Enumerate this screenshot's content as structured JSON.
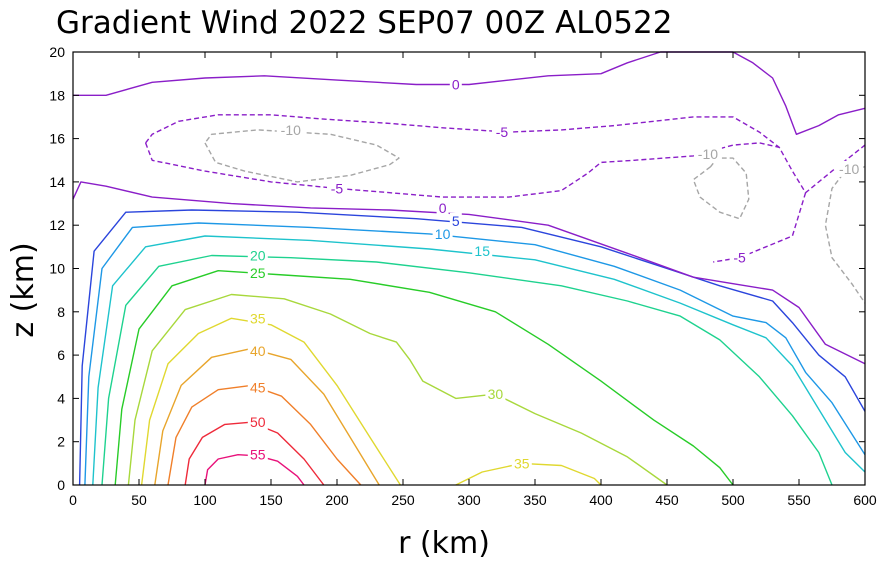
{
  "chart_data": {
    "type": "contour",
    "title": "Gradient Wind 2022 SEP07 00Z  AL0522",
    "xlabel": "r (km)",
    "ylabel": "z (km)",
    "xlim": [
      0,
      600
    ],
    "ylim": [
      0,
      20
    ],
    "xticks": [
      "0",
      "50",
      "100",
      "150",
      "200",
      "250",
      "300",
      "350",
      "400",
      "450",
      "500",
      "550",
      "600"
    ],
    "yticks": [
      "0",
      "2",
      "4",
      "6",
      "8",
      "10",
      "12",
      "14",
      "16",
      "18",
      "20"
    ],
    "contours": [
      {
        "level": "55",
        "color": "#e8117a",
        "dashed": false,
        "points": [
          [
            100,
            0
          ],
          [
            102,
            0.7
          ],
          [
            110,
            1.2
          ],
          [
            125,
            1.4
          ],
          [
            140,
            1.35
          ],
          [
            155,
            1.1
          ],
          [
            170,
            0.4
          ],
          [
            175,
            0
          ]
        ],
        "label": {
          "text": "55",
          "x": 140,
          "y": 1.4
        }
      },
      {
        "level": "50",
        "color": "#ee2a3a",
        "dashed": false,
        "points": [
          [
            85,
            0
          ],
          [
            88,
            1.2
          ],
          [
            98,
            2.2
          ],
          [
            115,
            2.8
          ],
          [
            135,
            2.9
          ],
          [
            155,
            2.4
          ],
          [
            175,
            1.2
          ],
          [
            190,
            0
          ]
        ],
        "label": {
          "text": "50",
          "x": 140,
          "y": 2.9
        }
      },
      {
        "level": "45",
        "color": "#f07f2a",
        "dashed": false,
        "points": [
          [
            72,
            0
          ],
          [
            78,
            2.2
          ],
          [
            90,
            3.6
          ],
          [
            110,
            4.4
          ],
          [
            135,
            4.6
          ],
          [
            158,
            4.1
          ],
          [
            180,
            2.8
          ],
          [
            200,
            1.2
          ],
          [
            218,
            0
          ]
        ],
        "label": {
          "text": "45",
          "x": 140,
          "y": 4.5
        }
      },
      {
        "level": "40",
        "color": "#e8a52c",
        "dashed": false,
        "points": [
          [
            62,
            0
          ],
          [
            68,
            2.5
          ],
          [
            82,
            4.6
          ],
          [
            105,
            5.9
          ],
          [
            135,
            6.3
          ],
          [
            165,
            5.8
          ],
          [
            190,
            4.2
          ],
          [
            210,
            2.2
          ],
          [
            232,
            0
          ]
        ],
        "label": {
          "text": "40",
          "x": 140,
          "y": 6.2
        }
      },
      {
        "level": "35",
        "color": "#e0d830",
        "dashed": false,
        "points": [
          [
            52,
            0
          ],
          [
            58,
            3
          ],
          [
            72,
            5.6
          ],
          [
            95,
            7
          ],
          [
            120,
            7.7
          ],
          [
            150,
            7.4
          ],
          [
            175,
            6.6
          ],
          [
            200,
            4.6
          ],
          [
            225,
            2.2
          ],
          [
            248,
            0
          ]
        ],
        "label": {
          "text": "35",
          "x": 140,
          "y": 7.7
        }
      },
      {
        "level": "35",
        "color": "#e0d830",
        "dashed": false,
        "points": [
          [
            290,
            0
          ],
          [
            310,
            0.6
          ],
          [
            340,
            1
          ],
          [
            370,
            0.9
          ],
          [
            395,
            0.3
          ],
          [
            400,
            0
          ]
        ],
        "label": {
          "text": "35",
          "x": 340,
          "y": 1.0
        }
      },
      {
        "level": "30",
        "color": "#a8d83c",
        "dashed": false,
        "points": [
          [
            42,
            0
          ],
          [
            47,
            3
          ],
          [
            60,
            6.2
          ],
          [
            85,
            8.1
          ],
          [
            120,
            8.8
          ],
          [
            160,
            8.6
          ],
          [
            195,
            7.9
          ],
          [
            225,
            7
          ],
          [
            245,
            6.6
          ],
          [
            255,
            5.8
          ],
          [
            265,
            4.8
          ],
          [
            290,
            4.0
          ],
          [
            320,
            4.2
          ],
          [
            350,
            3.3
          ],
          [
            385,
            2.4
          ],
          [
            420,
            1.3
          ],
          [
            450,
            0
          ]
        ],
        "label": {
          "text": "30",
          "x": 320,
          "y": 4.2
        }
      },
      {
        "level": "25",
        "color": "#28cc28",
        "dashed": false,
        "points": [
          [
            32,
            0
          ],
          [
            37,
            3.5
          ],
          [
            50,
            7.2
          ],
          [
            75,
            9.2
          ],
          [
            110,
            9.9
          ],
          [
            160,
            9.7
          ],
          [
            210,
            9.5
          ],
          [
            270,
            8.9
          ],
          [
            320,
            8
          ],
          [
            360,
            6.5
          ],
          [
            400,
            4.8
          ],
          [
            440,
            3
          ],
          [
            470,
            1.8
          ],
          [
            490,
            0.8
          ],
          [
            500,
            0
          ]
        ],
        "label": {
          "text": "25",
          "x": 140,
          "y": 9.8
        }
      },
      {
        "level": "20",
        "color": "#1ed28f",
        "dashed": false,
        "points": [
          [
            22,
            0
          ],
          [
            27,
            4
          ],
          [
            40,
            8.3
          ],
          [
            65,
            10.1
          ],
          [
            105,
            10.6
          ],
          [
            165,
            10.5
          ],
          [
            230,
            10.3
          ],
          [
            300,
            9.8
          ],
          [
            370,
            9.2
          ],
          [
            420,
            8.5
          ],
          [
            460,
            7.8
          ],
          [
            490,
            6.7
          ],
          [
            520,
            5
          ],
          [
            545,
            3.2
          ],
          [
            565,
            1.5
          ],
          [
            575,
            0
          ]
        ],
        "label": {
          "text": "20",
          "x": 140,
          "y": 10.6
        }
      },
      {
        "level": "15",
        "color": "#1ec3cc",
        "dashed": false,
        "points": [
          [
            15,
            0
          ],
          [
            19,
            4.5
          ],
          [
            30,
            9.2
          ],
          [
            55,
            11
          ],
          [
            100,
            11.5
          ],
          [
            180,
            11.3
          ],
          [
            270,
            10.9
          ],
          [
            350,
            10.4
          ],
          [
            410,
            9.5
          ],
          [
            460,
            8.4
          ],
          [
            500,
            7.4
          ],
          [
            525,
            6.8
          ],
          [
            545,
            5.5
          ],
          [
            565,
            3.5
          ],
          [
            585,
            1.5
          ],
          [
            600,
            0.6
          ]
        ],
        "label": {
          "text": "15",
          "x": 310,
          "y": 10.8
        }
      },
      {
        "level": "10",
        "color": "#1e98e6",
        "dashed": false,
        "points": [
          [
            9,
            0
          ],
          [
            12,
            5
          ],
          [
            22,
            10
          ],
          [
            45,
            11.9
          ],
          [
            95,
            12.1
          ],
          [
            180,
            11.9
          ],
          [
            270,
            11.6
          ],
          [
            350,
            11.1
          ],
          [
            410,
            10.1
          ],
          [
            460,
            9
          ],
          [
            500,
            7.8
          ],
          [
            525,
            7.5
          ],
          [
            540,
            6.8
          ],
          [
            555,
            5.2
          ],
          [
            575,
            3.8
          ],
          [
            600,
            1.4
          ]
        ],
        "label": {
          "text": "10",
          "x": 280,
          "y": 11.6
        }
      },
      {
        "level": "5",
        "color": "#2b45dc",
        "dashed": false,
        "points": [
          [
            5,
            0
          ],
          [
            7,
            5.5
          ],
          [
            16,
            10.8
          ],
          [
            40,
            12.6
          ],
          [
            90,
            12.7
          ],
          [
            170,
            12.6
          ],
          [
            260,
            12.3
          ],
          [
            340,
            11.9
          ],
          [
            400,
            11
          ],
          [
            450,
            10
          ],
          [
            490,
            9.2
          ],
          [
            530,
            8.5
          ],
          [
            545,
            7.5
          ],
          [
            565,
            6
          ],
          [
            585,
            5
          ],
          [
            600,
            3.4
          ]
        ],
        "label": {
          "text": "5",
          "x": 290,
          "y": 12.2
        }
      },
      {
        "level": "0",
        "color": "#8a1ec8",
        "dashed": false,
        "points": [
          [
            0,
            13.2
          ],
          [
            6,
            14
          ],
          [
            25,
            13.8
          ],
          [
            60,
            13.3
          ],
          [
            120,
            13
          ],
          [
            180,
            12.8
          ],
          [
            240,
            12.7
          ],
          [
            300,
            12.5
          ],
          [
            360,
            12
          ],
          [
            420,
            10.7
          ],
          [
            470,
            9.6
          ],
          [
            500,
            9.3
          ],
          [
            530,
            9
          ],
          [
            550,
            8.2
          ],
          [
            570,
            6.5
          ],
          [
            600,
            5.6
          ]
        ],
        "label": {
          "text": "0",
          "x": 280,
          "y": 12.8
        }
      },
      {
        "level": "0",
        "color": "#8a1ec8",
        "dashed": false,
        "points": [
          [
            0,
            18
          ],
          [
            25,
            18
          ],
          [
            60,
            18.6
          ],
          [
            100,
            18.8
          ],
          [
            145,
            18.9
          ],
          [
            200,
            18.7
          ],
          [
            260,
            18.5
          ],
          [
            300,
            18.5
          ],
          [
            360,
            18.9
          ],
          [
            400,
            19
          ],
          [
            420,
            19.5
          ],
          [
            445,
            20
          ],
          [
            500,
            20
          ],
          [
            515,
            19.5
          ],
          [
            530,
            18.8
          ],
          [
            540,
            17.5
          ],
          [
            548,
            16.2
          ],
          [
            565,
            16.6
          ],
          [
            580,
            17.1
          ],
          [
            600,
            17.4
          ]
        ],
        "label": {
          "text": "0",
          "x": 290,
          "y": 18.5
        }
      },
      {
        "level": "-5",
        "color": "#8a1ec8",
        "dashed": true,
        "points": [
          [
            55,
            15.8
          ],
          [
            60,
            15
          ],
          [
            100,
            14.5
          ],
          [
            150,
            14
          ],
          [
            200,
            13.7
          ],
          [
            240,
            13.5
          ],
          [
            280,
            13.3
          ],
          [
            330,
            13.3
          ],
          [
            370,
            13.6
          ],
          [
            390,
            14.4
          ],
          [
            400,
            14.9
          ],
          [
            425,
            15
          ],
          [
            470,
            15.2
          ],
          [
            500,
            15.7
          ],
          [
            520,
            15.8
          ],
          [
            535,
            15.6
          ],
          [
            545,
            14.5
          ],
          [
            555,
            13.5
          ],
          [
            575,
            14.5
          ],
          [
            600,
            15.7
          ]
        ],
        "label": {
          "text": "-5",
          "x": 200,
          "y": 13.7
        }
      },
      {
        "level": "-5",
        "color": "#8a1ec8",
        "dashed": true,
        "points": [
          [
            55,
            15.8
          ],
          [
            60,
            16.2
          ],
          [
            80,
            16.8
          ],
          [
            110,
            17.1
          ],
          [
            150,
            17.1
          ],
          [
            190,
            16.9
          ],
          [
            240,
            16.7
          ],
          [
            280,
            16.5
          ],
          [
            330,
            16.3
          ],
          [
            370,
            16.4
          ],
          [
            410,
            16.6
          ],
          [
            440,
            16.8
          ],
          [
            470,
            17
          ],
          [
            500,
            17
          ],
          [
            520,
            16.3
          ],
          [
            535,
            15.6
          ]
        ],
        "label": {
          "text": "-5",
          "x": 325,
          "y": 16.3
        }
      },
      {
        "level": "-5",
        "color": "#8a1ec8",
        "dashed": true,
        "points": [
          [
            555,
            13.5
          ],
          [
            545,
            11.5
          ],
          [
            525,
            11
          ],
          [
            505,
            10.5
          ],
          [
            485,
            10.3
          ]
        ],
        "label": {
          "text": "-5",
          "x": 505,
          "y": 10.5
        }
      },
      {
        "level": "-10",
        "color": "#a6a6a6",
        "dashed": true,
        "points": [
          [
            100,
            15.8
          ],
          [
            108,
            14.9
          ],
          [
            130,
            14.5
          ],
          [
            170,
            14
          ],
          [
            210,
            14.3
          ],
          [
            240,
            14.8
          ],
          [
            247,
            15.1
          ],
          [
            230,
            15.7
          ],
          [
            195,
            16.2
          ],
          [
            140,
            16.4
          ],
          [
            105,
            16.2
          ],
          [
            100,
            15.8
          ]
        ],
        "label": {
          "text": "-10",
          "x": 165,
          "y": 16.4
        }
      },
      {
        "level": "-10",
        "color": "#a6a6a6",
        "dashed": true,
        "points": [
          [
            483,
            14.7
          ],
          [
            470,
            14.1
          ],
          [
            475,
            13.3
          ],
          [
            490,
            12.6
          ],
          [
            505,
            12.3
          ],
          [
            512,
            13.2
          ],
          [
            510,
            14.4
          ],
          [
            500,
            15.1
          ],
          [
            488,
            15.1
          ],
          [
            483,
            14.7
          ]
        ],
        "label": {
          "text": "-10",
          "x": 481,
          "y": 15.3
        }
      },
      {
        "level": "-10",
        "color": "#a6a6a6",
        "dashed": true,
        "points": [
          [
            600,
            14.7
          ],
          [
            585,
            14.5
          ],
          [
            575,
            13.7
          ],
          [
            570,
            12
          ],
          [
            575,
            10.5
          ],
          [
            590,
            9.3
          ],
          [
            600,
            8.4
          ]
        ],
        "label": {
          "text": "-10",
          "x": 588,
          "y": 14.6
        }
      }
    ]
  }
}
